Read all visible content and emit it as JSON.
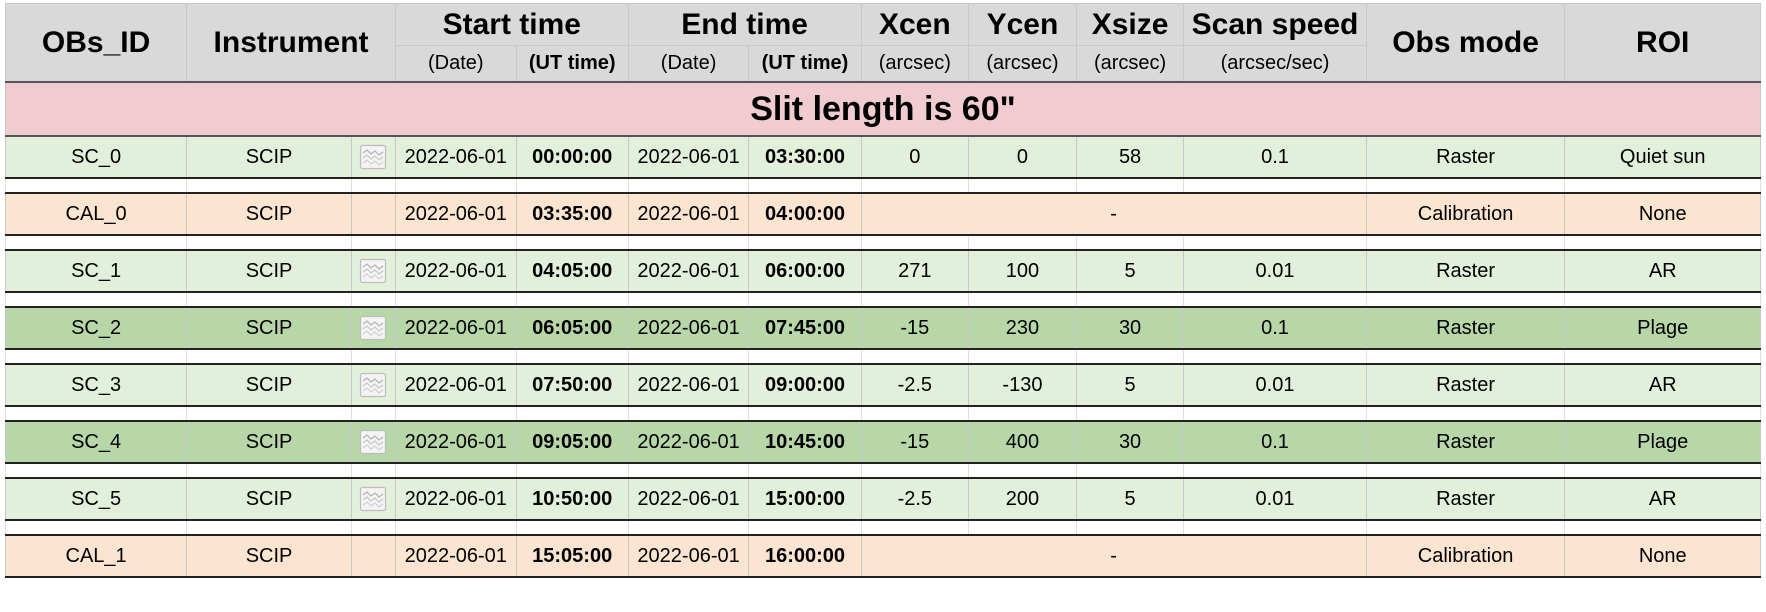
{
  "header": {
    "obs_id": "OBs_ID",
    "instrument": "Instrument",
    "start_time": "Start time",
    "end_time": "End time",
    "xcen": "Xcen",
    "ycen": "Ycen",
    "xsize": "Xsize",
    "scan_speed": "Scan speed",
    "obs_mode": "Obs mode",
    "roi": "ROI",
    "sub": {
      "start_date": "(Date)",
      "start_ut": "(UT time)",
      "end_date": "(Date)",
      "end_ut": "(UT time)",
      "xcen_unit": "(arcsec)",
      "ycen_unit": "(arcsec)",
      "xsize_unit": "(arcsec)",
      "scan_unit": "(arcsec/sec)"
    }
  },
  "banner": "Slit length is 60\"",
  "rows": [
    {
      "id": "SC_0",
      "instrument": "SCIP",
      "start_date": "2022-06-01",
      "start_time": "00:00:00",
      "end_date": "2022-06-01",
      "end_time": "03:30:00",
      "xcen": "0",
      "ycen": "0",
      "xsize": "58",
      "speed": "0.1",
      "mode": "Raster",
      "roi": "Quiet sun"
    },
    {
      "id": "CAL_0",
      "instrument": "SCIP",
      "start_date": "2022-06-01",
      "start_time": "03:35:00",
      "end_date": "2022-06-01",
      "end_time": "04:00:00",
      "merged": "-",
      "mode": "Calibration",
      "roi": "None"
    },
    {
      "id": "SC_1",
      "instrument": "SCIP",
      "start_date": "2022-06-01",
      "start_time": "04:05:00",
      "end_date": "2022-06-01",
      "end_time": "06:00:00",
      "xcen": "271",
      "ycen": "100",
      "xsize": "5",
      "speed": "0.01",
      "mode": "Raster",
      "roi": "AR"
    },
    {
      "id": "SC_2",
      "instrument": "SCIP",
      "start_date": "2022-06-01",
      "start_time": "06:05:00",
      "end_date": "2022-06-01",
      "end_time": "07:45:00",
      "xcen": "-15",
      "ycen": "230",
      "xsize": "30",
      "speed": "0.1",
      "mode": "Raster",
      "roi": "Plage"
    },
    {
      "id": "SC_3",
      "instrument": "SCIP",
      "start_date": "2022-06-01",
      "start_time": "07:50:00",
      "end_date": "2022-06-01",
      "end_time": "09:00:00",
      "xcen": "-2.5",
      "ycen": "-130",
      "xsize": "5",
      "speed": "0.01",
      "mode": "Raster",
      "roi": "AR"
    },
    {
      "id": "SC_4",
      "instrument": "SCIP",
      "start_date": "2022-06-01",
      "start_time": "09:05:00",
      "end_date": "2022-06-01",
      "end_time": "10:45:00",
      "xcen": "-15",
      "ycen": "400",
      "xsize": "30",
      "speed": "0.1",
      "mode": "Raster",
      "roi": "Plage"
    },
    {
      "id": "SC_5",
      "instrument": "SCIP",
      "start_date": "2022-06-01",
      "start_time": "10:50:00",
      "end_date": "2022-06-01",
      "end_time": "15:00:00",
      "xcen": "-2.5",
      "ycen": "200",
      "xsize": "5",
      "speed": "0.01",
      "mode": "Raster",
      "roi": "AR"
    },
    {
      "id": "CAL_1",
      "instrument": "SCIP",
      "start_date": "2022-06-01",
      "start_time": "15:05:00",
      "end_date": "2022-06-01",
      "end_time": "16:00:00",
      "merged": "-",
      "mode": "Calibration",
      "roi": "None"
    }
  ],
  "colors": {
    "header_bg": "#d9d9d9",
    "banner_bg": "#f0cbd0",
    "science_light": "#e2efda",
    "science_dark": "#b8d7a8",
    "calibration": "#fbe5d1"
  },
  "icons": {
    "row_chart": "chart-image-icon"
  }
}
